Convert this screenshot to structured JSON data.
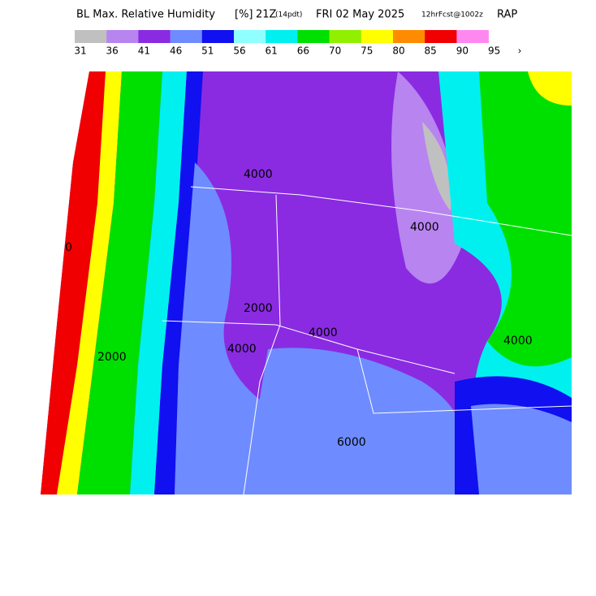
{
  "header": {
    "title": "BL Max. Relative Humidity",
    "units": "[%]",
    "time": "21Z",
    "local_time": "(14pdt)",
    "date": "FRI 02 May 2025",
    "forecast": "12hrFcst@1002z",
    "model": "RAP"
  },
  "legend": {
    "colors": [
      "#c0c0c0",
      "#b884f0",
      "#8a2be2",
      "#6e8cff",
      "#1010f0",
      "#90ffff",
      "#00f0f0",
      "#00e000",
      "#90f000",
      "#ffff00",
      "#ff8c00",
      "#f00000",
      "#ff88f0"
    ],
    "labels": [
      31,
      36,
      41,
      46,
      51,
      56,
      61,
      66,
      70,
      75,
      80,
      85,
      90,
      95
    ],
    "more": "›"
  },
  "map": {
    "contour_labels": [
      "4000",
      "4000",
      "2000",
      "4000",
      "4000",
      "6000",
      "4000",
      "2000",
      "0"
    ]
  }
}
